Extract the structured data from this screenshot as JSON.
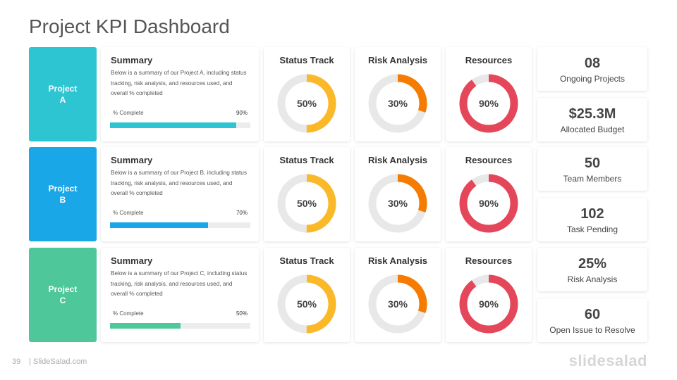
{
  "title": "Project KPI Dashboard",
  "footer": {
    "page_number": "39",
    "brand": "| SlideSalad.com",
    "logo": "slidesalad"
  },
  "colors": {
    "project_a": "#2ec5d3",
    "project_b": "#1aa7e8",
    "project_c": "#4ec89a",
    "status": "#fbb829",
    "risk": "#f57c00",
    "resources": "#e5475a",
    "track": "#e8e8e8"
  },
  "projects": [
    {
      "name_line1": "Project",
      "name_line2": "A",
      "summary_title": "Summary",
      "summary_text": "Below is a summary of our Project A, including status tracking, risk analysis, and resources used, and overall % completed",
      "complete_label": "% Complete",
      "complete_value": "90%",
      "complete_fraction": 0.9,
      "gauges": [
        {
          "title": "Status Track",
          "label": "50%",
          "fraction": 0.5,
          "color": "#fbb829"
        },
        {
          "title": "Risk Analysis",
          "label": "30%",
          "fraction": 0.3,
          "color": "#f57c00"
        },
        {
          "title": "Resources",
          "label": "90%",
          "fraction": 0.9,
          "color": "#e5475a"
        }
      ]
    },
    {
      "name_line1": "Project",
      "name_line2": "B",
      "summary_title": "Summary",
      "summary_text": "Below is a summary of our Project B, including status tracking, risk analysis, and resources used, and overall % completed",
      "complete_label": "% Complete",
      "complete_value": "70%",
      "complete_fraction": 0.7,
      "gauges": [
        {
          "title": "Status Track",
          "label": "50%",
          "fraction": 0.5,
          "color": "#fbb829"
        },
        {
          "title": "Risk Analysis",
          "label": "30%",
          "fraction": 0.3,
          "color": "#f57c00"
        },
        {
          "title": "Resources",
          "label": "90%",
          "fraction": 0.9,
          "color": "#e5475a"
        }
      ]
    },
    {
      "name_line1": "Project",
      "name_line2": "C",
      "summary_title": "Summary",
      "summary_text": "Below is a summary of our Project C, including status tracking, risk analysis, and resources used, and overall % completed",
      "complete_label": "% Complete",
      "complete_value": "50%",
      "complete_fraction": 0.5,
      "gauges": [
        {
          "title": "Status Track",
          "label": "50%",
          "fraction": 0.5,
          "color": "#fbb829"
        },
        {
          "title": "Risk Analysis",
          "label": "30%",
          "fraction": 0.3,
          "color": "#f57c00"
        },
        {
          "title": "Resources",
          "label": "90%",
          "fraction": 0.9,
          "color": "#e5475a"
        }
      ]
    }
  ],
  "stats": [
    {
      "value": "08",
      "label": "Ongoing Projects"
    },
    {
      "value": "$25.3M",
      "label": "Allocated Budget"
    },
    {
      "value": "50",
      "label": "Team Members"
    },
    {
      "value": "102",
      "label": "Task Pending"
    },
    {
      "value": "25%",
      "label": "Risk Analysis"
    },
    {
      "value": "60",
      "label": "Open Issue to Resolve"
    }
  ]
}
